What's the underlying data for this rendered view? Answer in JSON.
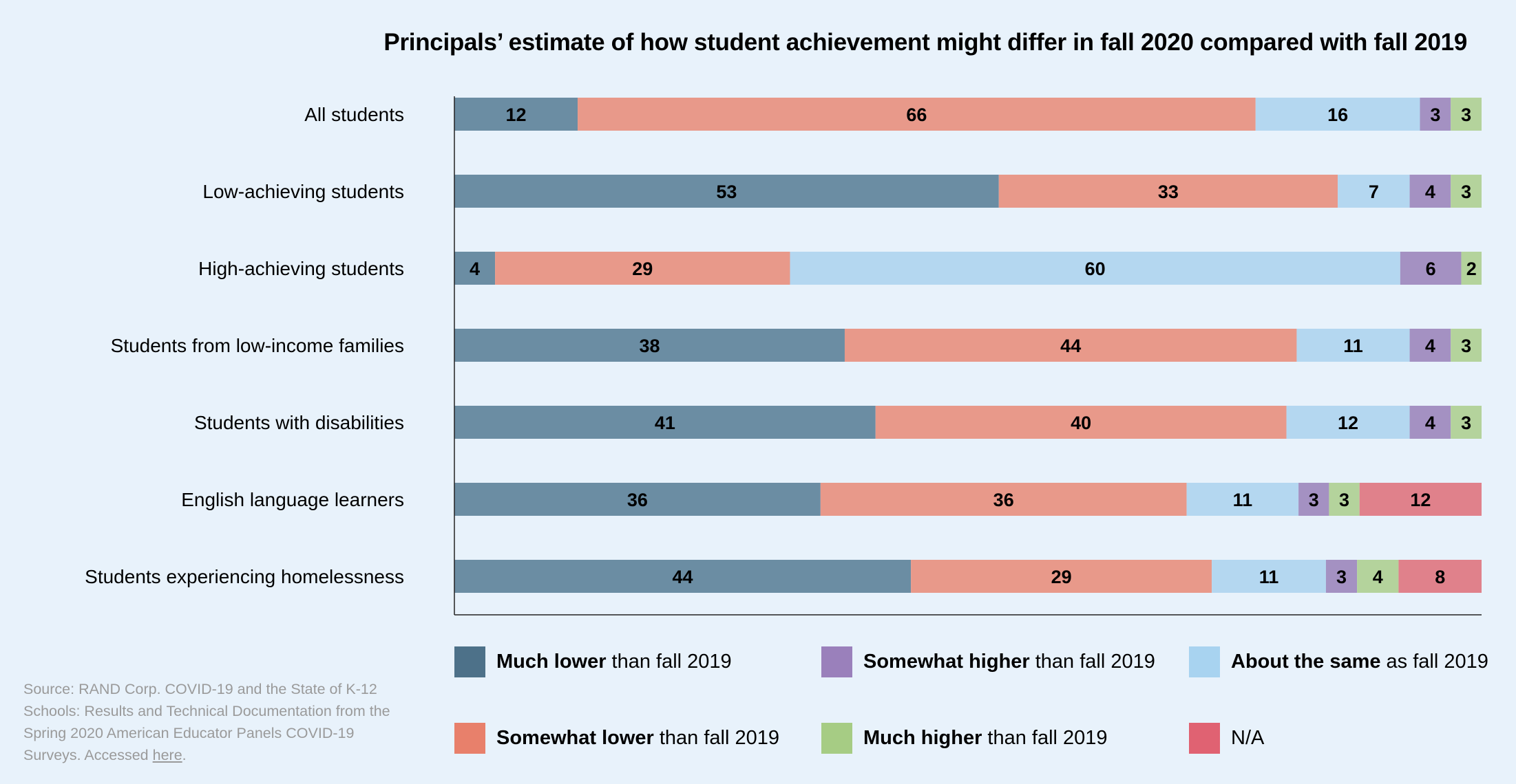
{
  "chart_data": {
    "type": "bar",
    "orientation": "horizontal",
    "stacked": true,
    "title": "Principals’ estimate of how student achievement might differ in fall 2020 compared with fall 2019",
    "xlabel": "",
    "ylabel": "",
    "grid": false,
    "legend_placement": "bottom",
    "categories": [
      "All students",
      "Low-achieving students",
      "High-achieving students",
      "Students from low-income families",
      "Students with disabilities",
      "English language learners",
      "Students experiencing homelessness"
    ],
    "series": [
      {
        "name": "Much lower than fall 2019",
        "bold": "Much lower",
        "rest": "than fall 2019",
        "color": "#6b8da3",
        "legend_color": "#4d7189",
        "values": [
          12,
          53,
          4,
          38,
          41,
          36,
          44
        ]
      },
      {
        "name": "Somewhat lower than fall 2019",
        "bold": "Somewhat lower",
        "rest": "than fall 2019",
        "color": "#e8998a",
        "legend_color": "#e8806b",
        "values": [
          66,
          33,
          29,
          44,
          40,
          36,
          29
        ]
      },
      {
        "name": "About the same as fall 2019",
        "bold": "About the same",
        "rest": "as fall 2019",
        "color": "#b4d7f0",
        "legend_color": "#a8d3f0",
        "values": [
          16,
          7,
          60,
          11,
          12,
          11,
          11
        ]
      },
      {
        "name": "Somewhat higher than fall 2019",
        "bold": "Somewhat higher",
        "rest": "than fall 2019",
        "color": "#a491c2",
        "legend_color": "#9a80bb",
        "values": [
          3,
          4,
          6,
          4,
          4,
          3,
          3
        ]
      },
      {
        "name": "Much higher than fall 2019",
        "bold": "Much higher",
        "rest": "than fall 2019",
        "color": "#b4d39c",
        "legend_color": "#a6cc84",
        "values": [
          3,
          3,
          2,
          3,
          3,
          3,
          4
        ]
      },
      {
        "name": "N/A",
        "bold": "",
        "rest": "N/A",
        "color": "#e0818b",
        "legend_color": "#e06272",
        "values": [
          0,
          0,
          0,
          0,
          0,
          12,
          8
        ]
      }
    ]
  },
  "source": {
    "text": "Source: RAND Corp. COVID-19 and the State of K-12 Schools: Results and Technical Documentation from the Spring 2020 American Educator Panels COVID-19 Surveys. Accessed ",
    "link": "here",
    "end": "."
  }
}
